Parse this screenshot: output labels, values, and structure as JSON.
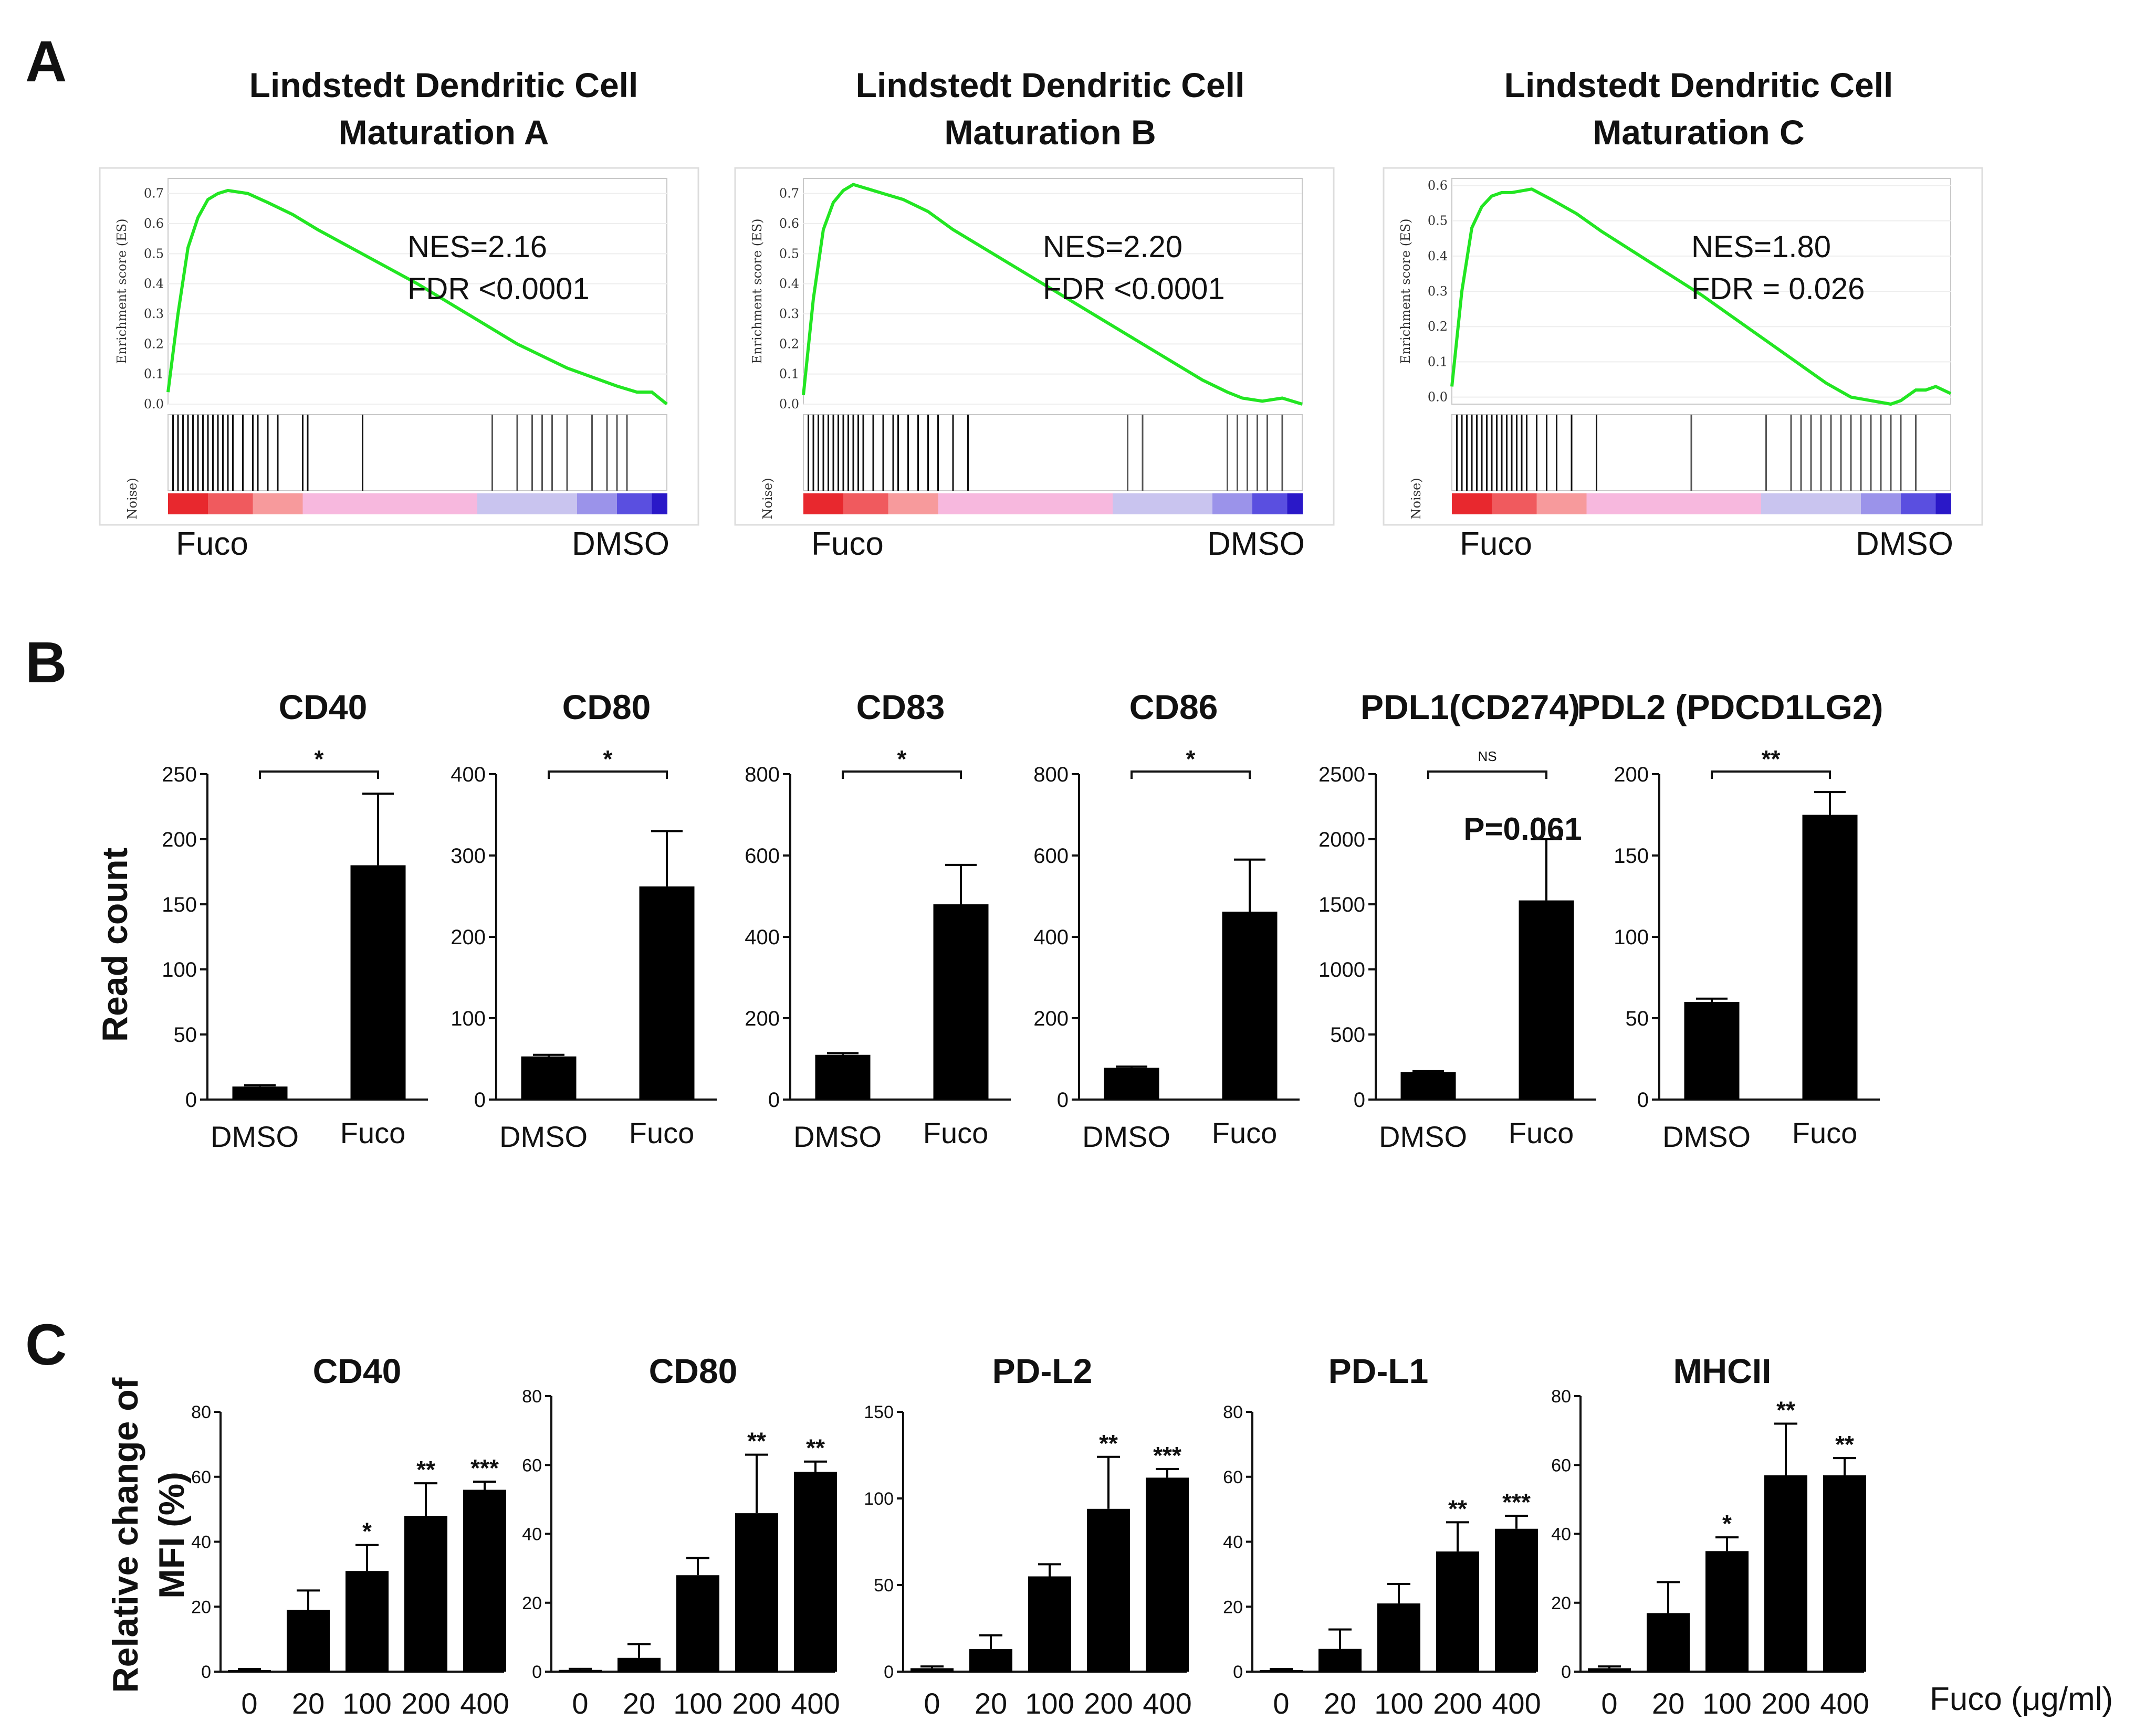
{
  "panels": {
    "A": {
      "label": "A"
    },
    "B": {
      "label": "B",
      "ylabel": "Read count"
    },
    "C": {
      "label": "C",
      "ylabel_line1": "Relative change of",
      "ylabel_line2": "MFI (%)",
      "xlabel": "Fuco (μg/ml)"
    }
  },
  "chart_data": [
    {
      "type": "line",
      "panel": "A",
      "title_line1": "Lindstedt Dendritic Cell",
      "title_line2": "Maturation A",
      "ylabel": "Enrichment score (ES)",
      "lower_ylabel": "Noise)",
      "yticks": [
        "0.0",
        "0.1",
        "0.2",
        "0.3",
        "0.4",
        "0.5",
        "0.6",
        "0.7"
      ],
      "ylim": [
        0,
        0.75
      ],
      "x": [
        0,
        2,
        4,
        6,
        8,
        10,
        12,
        16,
        20,
        25,
        30,
        40,
        50,
        60,
        70,
        80,
        85,
        90,
        94,
        97,
        100
      ],
      "y": [
        0.04,
        0.3,
        0.52,
        0.62,
        0.68,
        0.7,
        0.71,
        0.7,
        0.67,
        0.63,
        0.58,
        0.49,
        0.4,
        0.3,
        0.2,
        0.12,
        0.09,
        0.06,
        0.04,
        0.04,
        0.0
      ],
      "hits": [
        1,
        2,
        3,
        4,
        5,
        6,
        7,
        8,
        9,
        10,
        11,
        12,
        13,
        15,
        17,
        18,
        20,
        22,
        27,
        28,
        39,
        65,
        70,
        73,
        75,
        77,
        80,
        85,
        88,
        90,
        92
      ],
      "nes": "NES=2.16",
      "fdr": "FDR <0.0001",
      "left_label": "Fuco",
      "right_label": "DMSO",
      "color": "#22e622"
    },
    {
      "type": "line",
      "panel": "A",
      "title_line1": "Lindstedt Dendritic Cell",
      "title_line2": "Maturation B",
      "ylabel": "Enrichment score (ES)",
      "lower_ylabel": "Noise)",
      "yticks": [
        "0.0",
        "0.1",
        "0.2",
        "0.3",
        "0.4",
        "0.5",
        "0.6",
        "0.7"
      ],
      "ylim": [
        0,
        0.75
      ],
      "x": [
        0,
        2,
        4,
        6,
        8,
        10,
        12,
        16,
        20,
        25,
        30,
        40,
        50,
        60,
        70,
        80,
        85,
        88,
        92,
        96,
        100
      ],
      "y": [
        0.03,
        0.35,
        0.58,
        0.67,
        0.71,
        0.73,
        0.72,
        0.7,
        0.68,
        0.64,
        0.58,
        0.48,
        0.38,
        0.28,
        0.18,
        0.08,
        0.04,
        0.02,
        0.01,
        0.02,
        0.0
      ],
      "hits": [
        1,
        2,
        3,
        4,
        5,
        6,
        7,
        8,
        9,
        10,
        11,
        12,
        14,
        16,
        18,
        19,
        21,
        23,
        25,
        27,
        30,
        33,
        65,
        68,
        85,
        87,
        89,
        91,
        93,
        96
      ],
      "nes": "NES=2.20",
      "fdr": "FDR <0.0001",
      "left_label": "Fuco",
      "right_label": "DMSO",
      "color": "#22e622"
    },
    {
      "type": "line",
      "panel": "A",
      "title_line1": "Lindstedt Dendritic Cell",
      "title_line2": "Maturation C",
      "ylabel": "Enrichment score (ES)",
      "lower_ylabel": "Noise)",
      "yticks": [
        "0.0",
        "0.1",
        "0.2",
        "0.3",
        "0.4",
        "0.5",
        "0.6"
      ],
      "ylim": [
        -0.02,
        0.62
      ],
      "x": [
        0,
        2,
        4,
        6,
        8,
        10,
        12,
        16,
        20,
        25,
        30,
        40,
        50,
        60,
        70,
        75,
        80,
        84,
        88,
        90,
        93,
        95,
        97,
        100
      ],
      "y": [
        0.03,
        0.3,
        0.48,
        0.54,
        0.57,
        0.58,
        0.58,
        0.59,
        0.56,
        0.52,
        0.47,
        0.38,
        0.29,
        0.19,
        0.09,
        0.04,
        0.0,
        -0.01,
        -0.02,
        -0.01,
        0.02,
        0.02,
        0.03,
        0.01
      ],
      "hits": [
        1,
        2,
        3,
        4,
        5,
        6,
        7,
        8,
        9,
        10,
        11,
        12,
        13,
        14,
        15,
        17,
        19,
        21,
        24,
        29,
        48,
        63,
        68,
        70,
        72,
        74,
        76,
        78,
        80,
        82,
        84,
        86,
        88,
        90,
        93
      ],
      "nes": "NES=1.80",
      "fdr": "FDR = 0.026",
      "left_label": "Fuco",
      "right_label": "DMSO",
      "color": "#22e622"
    },
    {
      "type": "bar",
      "panel": "B",
      "title": "CD40",
      "categories": [
        "DMSO",
        "Fuco"
      ],
      "values": [
        10,
        180
      ],
      "errors": [
        1,
        55
      ],
      "ylim": [
        0,
        250
      ],
      "yticks": [
        0,
        50,
        100,
        150,
        200,
        250
      ],
      "significance": "*"
    },
    {
      "type": "bar",
      "panel": "B",
      "title": "CD80",
      "categories": [
        "DMSO",
        "Fuco"
      ],
      "values": [
        53,
        262
      ],
      "errors": [
        2,
        68
      ],
      "ylim": [
        0,
        400
      ],
      "yticks": [
        0,
        100,
        200,
        300,
        400
      ],
      "significance": "*"
    },
    {
      "type": "bar",
      "panel": "B",
      "title": "CD83",
      "categories": [
        "DMSO",
        "Fuco"
      ],
      "values": [
        110,
        480
      ],
      "errors": [
        4,
        97
      ],
      "ylim": [
        0,
        800
      ],
      "yticks": [
        0,
        200,
        400,
        600,
        800
      ],
      "significance": "*"
    },
    {
      "type": "bar",
      "panel": "B",
      "title": "CD86",
      "categories": [
        "DMSO",
        "Fuco"
      ],
      "values": [
        78,
        462
      ],
      "errors": [
        3,
        128
      ],
      "ylim": [
        0,
        800
      ],
      "yticks": [
        0,
        200,
        400,
        600,
        800
      ],
      "significance": "*"
    },
    {
      "type": "bar",
      "panel": "B",
      "title": "PDL1(CD274)",
      "categories": [
        "DMSO",
        "Fuco"
      ],
      "values": [
        210,
        1530
      ],
      "errors": [
        8,
        470
      ],
      "ylim": [
        0,
        2500
      ],
      "yticks": [
        0,
        500,
        1000,
        1500,
        2000,
        2500
      ],
      "significance": "NS",
      "annotation": "P=0.061"
    },
    {
      "type": "bar",
      "panel": "B",
      "title": "PDL2 (PDCD1LG2)",
      "categories": [
        "DMSO",
        "Fuco"
      ],
      "values": [
        60,
        175
      ],
      "errors": [
        2,
        14
      ],
      "ylim": [
        0,
        200
      ],
      "yticks": [
        0,
        50,
        100,
        150,
        200
      ],
      "significance": "**"
    },
    {
      "type": "bar",
      "panel": "C",
      "title": "CD40",
      "categories": [
        "0",
        "20",
        "100",
        "200",
        "400"
      ],
      "values": [
        0.5,
        19,
        31,
        48,
        56
      ],
      "errors": [
        0.3,
        6,
        8,
        10,
        2.5
      ],
      "stars": [
        "",
        "",
        "*",
        "**",
        "***"
      ],
      "ylim": [
        0,
        80
      ],
      "yticks": [
        0,
        20,
        40,
        60,
        80
      ]
    },
    {
      "type": "bar",
      "panel": "C",
      "title": "CD80",
      "categories": [
        "0",
        "20",
        "100",
        "200",
        "400"
      ],
      "values": [
        0.5,
        4,
        28,
        46,
        58
      ],
      "errors": [
        0.3,
        4,
        5,
        17,
        3
      ],
      "stars": [
        "",
        "",
        "",
        "**",
        "**"
      ],
      "ylim": [
        0,
        80
      ],
      "yticks": [
        0,
        20,
        40,
        60,
        80
      ]
    },
    {
      "type": "bar",
      "panel": "C",
      "title": "PD-L2",
      "categories": [
        "0",
        "20",
        "100",
        "200",
        "400"
      ],
      "values": [
        2,
        13,
        55,
        94,
        112
      ],
      "errors": [
        1,
        8,
        7,
        30,
        5
      ],
      "stars": [
        "",
        "",
        "",
        "**",
        "***"
      ],
      "ylim": [
        0,
        150
      ],
      "yticks": [
        0,
        50,
        100,
        150
      ]
    },
    {
      "type": "bar",
      "panel": "C",
      "title": "PD-L1",
      "categories": [
        "0",
        "20",
        "100",
        "200",
        "400"
      ],
      "values": [
        0.5,
        7,
        21,
        37,
        44
      ],
      "errors": [
        0.3,
        6,
        6,
        9,
        4
      ],
      "stars": [
        "",
        "",
        "",
        "**",
        "***"
      ],
      "ylim": [
        0,
        80
      ],
      "yticks": [
        0,
        20,
        40,
        60,
        80
      ]
    },
    {
      "type": "bar",
      "panel": "C",
      "title": "MHCII",
      "categories": [
        "0",
        "20",
        "100",
        "200",
        "400"
      ],
      "values": [
        1,
        17,
        35,
        57,
        57
      ],
      "errors": [
        0.5,
        9,
        4,
        15,
        5
      ],
      "stars": [
        "",
        "",
        "*",
        "**",
        "**"
      ],
      "ylim": [
        0,
        80
      ],
      "yticks": [
        0,
        20,
        40,
        60,
        80
      ]
    }
  ]
}
